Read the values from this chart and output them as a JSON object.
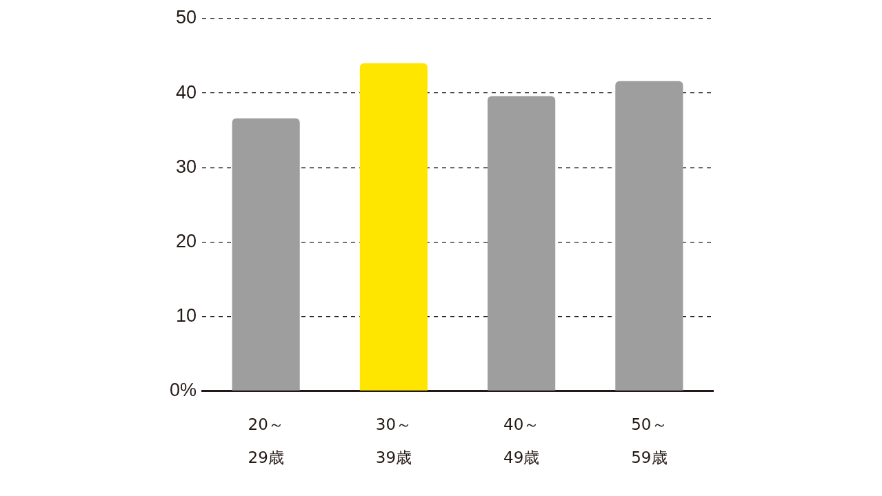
{
  "chart_data": {
    "type": "bar",
    "categories": [
      "20～\n29歳",
      "30～\n39歳",
      "40～\n49歳",
      "50～\n59歳"
    ],
    "values": [
      36.6,
      44.0,
      39.6,
      41.6
    ],
    "colors": [
      "#9e9e9f",
      "#ffe600",
      "#9e9e9f",
      "#9e9e9f"
    ],
    "ylim": [
      0,
      50
    ],
    "yticks": [
      {
        "value": 0,
        "label": "0%"
      },
      10,
      20,
      30,
      40,
      50
    ],
    "grid": "y",
    "legend": false
  }
}
